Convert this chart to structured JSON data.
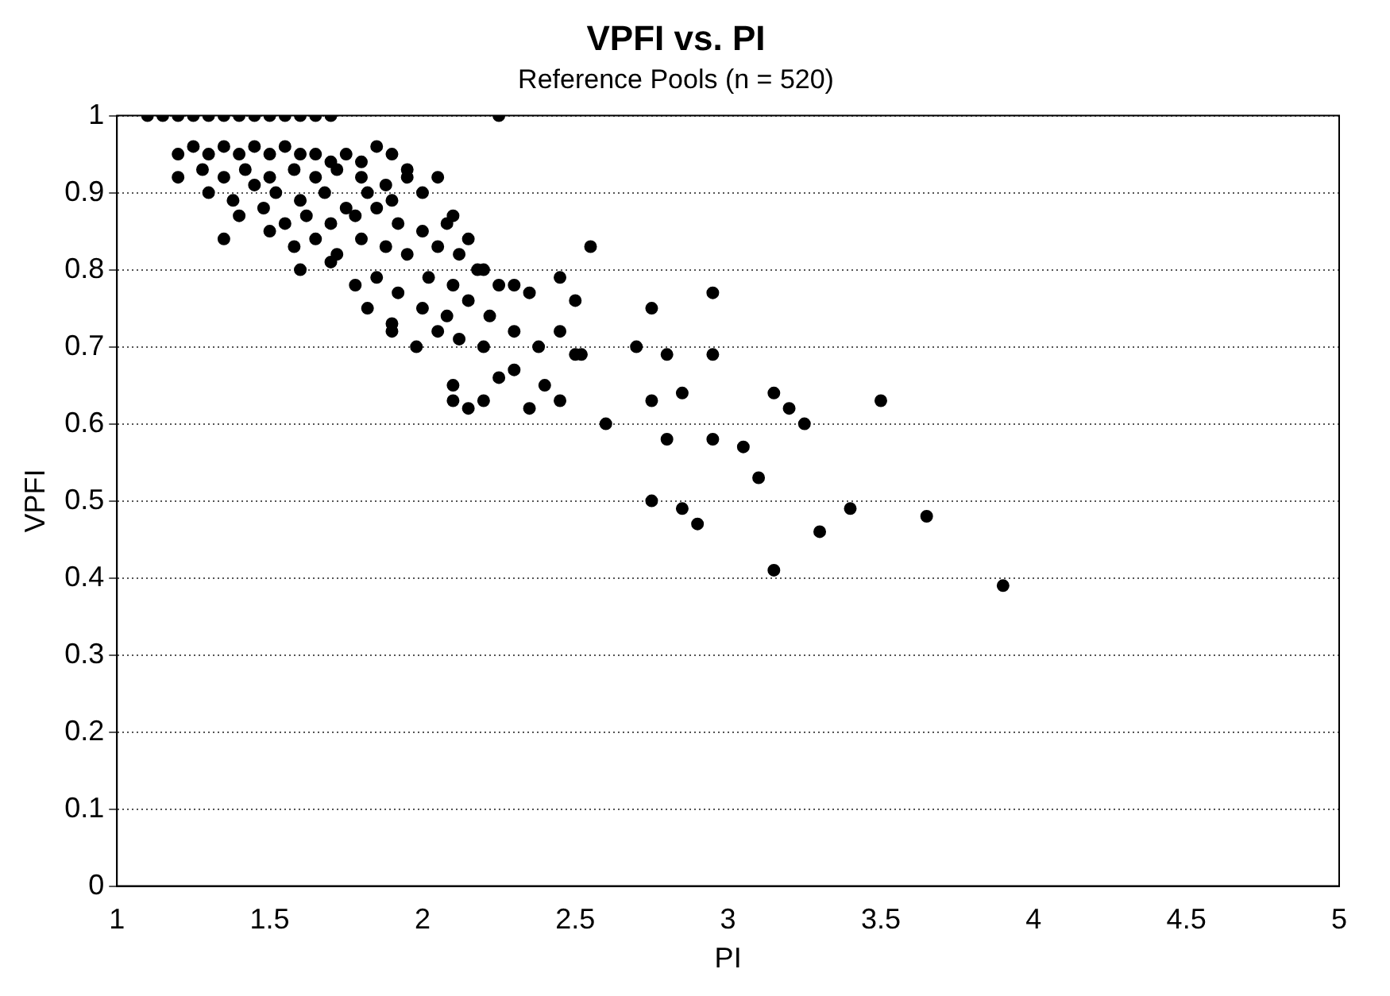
{
  "chart_data": {
    "type": "scatter",
    "title": "VPFI vs. PI",
    "subtitle": "Reference Pools (n = 520)",
    "xlabel": "PI",
    "ylabel": "VPFI",
    "xlim": [
      1,
      5
    ],
    "xticks": [
      1,
      1.5,
      2,
      2.5,
      3,
      3.5,
      4,
      4.5,
      5
    ],
    "ylim": [
      0,
      1
    ],
    "yticks": [
      0,
      0.1,
      0.2,
      0.3,
      0.4,
      0.5,
      0.6,
      0.7,
      0.8,
      0.9,
      1
    ],
    "grid": "y",
    "legend": false,
    "marker": "circle",
    "series": [
      {
        "color": "#000000",
        "x": [
          1.1,
          1.15,
          1.2,
          1.25,
          1.3,
          1.35,
          1.4,
          1.45,
          1.5,
          1.55,
          1.6,
          1.65,
          1.7,
          2.25,
          1.2,
          1.25,
          1.3,
          1.35,
          1.4,
          1.45,
          1.5,
          1.55,
          1.6,
          1.65,
          1.7,
          1.75,
          1.8,
          1.85,
          1.9,
          1.95,
          1.2,
          1.28,
          1.35,
          1.42,
          1.5,
          1.58,
          1.65,
          1.72,
          1.8,
          1.88,
          1.95,
          2.05,
          1.3,
          1.38,
          1.45,
          1.52,
          1.6,
          1.68,
          1.75,
          1.82,
          1.9,
          2.0,
          2.1,
          1.4,
          1.48,
          1.55,
          1.62,
          1.7,
          1.78,
          1.85,
          1.92,
          2.0,
          2.08,
          2.15,
          1.35,
          1.5,
          1.58,
          1.65,
          1.72,
          1.8,
          1.88,
          1.95,
          2.05,
          2.12,
          2.2,
          1.6,
          1.7,
          1.78,
          1.85,
          1.92,
          2.02,
          2.1,
          2.18,
          2.25,
          2.35,
          1.82,
          1.9,
          2.0,
          2.08,
          2.15,
          2.22,
          2.3,
          2.45,
          2.5,
          2.55,
          1.9,
          1.98,
          2.05,
          2.12,
          2.2,
          2.3,
          2.38,
          2.45,
          2.52,
          2.1,
          2.2,
          2.3,
          2.1,
          2.15,
          2.25,
          2.35,
          2.45,
          2.4,
          2.5,
          2.6,
          2.7,
          2.75,
          2.8,
          2.85,
          2.75,
          2.8,
          2.95,
          2.95,
          2.95,
          2.9,
          2.85,
          2.75,
          3.05,
          3.1,
          3.15,
          3.2,
          3.25,
          3.15,
          3.3,
          3.4,
          3.5,
          3.65,
          3.9
        ],
        "values": [
          1,
          1,
          1,
          1,
          1,
          1,
          1,
          1,
          1,
          1,
          1,
          1,
          1,
          1,
          0.95,
          0.96,
          0.95,
          0.96,
          0.95,
          0.96,
          0.95,
          0.96,
          0.95,
          0.95,
          0.94,
          0.95,
          0.94,
          0.96,
          0.95,
          0.92,
          0.92,
          0.93,
          0.92,
          0.93,
          0.92,
          0.93,
          0.92,
          0.93,
          0.92,
          0.91,
          0.93,
          0.92,
          0.9,
          0.89,
          0.91,
          0.9,
          0.89,
          0.9,
          0.88,
          0.9,
          0.89,
          0.9,
          0.87,
          0.87,
          0.88,
          0.86,
          0.87,
          0.86,
          0.87,
          0.88,
          0.86,
          0.85,
          0.86,
          0.84,
          0.84,
          0.85,
          0.83,
          0.84,
          0.82,
          0.84,
          0.83,
          0.82,
          0.83,
          0.82,
          0.8,
          0.8,
          0.81,
          0.78,
          0.79,
          0.77,
          0.79,
          0.78,
          0.8,
          0.78,
          0.77,
          0.75,
          0.73,
          0.75,
          0.74,
          0.76,
          0.74,
          0.78,
          0.79,
          0.76,
          0.83,
          0.72,
          0.7,
          0.72,
          0.71,
          0.7,
          0.72,
          0.7,
          0.72,
          0.69,
          0.65,
          0.63,
          0.67,
          0.63,
          0.62,
          0.66,
          0.62,
          0.63,
          0.65,
          0.69,
          0.6,
          0.7,
          0.75,
          0.69,
          0.64,
          0.63,
          0.58,
          0.77,
          0.69,
          0.58,
          0.47,
          0.49,
          0.5,
          0.57,
          0.53,
          0.41,
          0.62,
          0.6,
          0.64,
          0.46,
          0.49,
          0.63,
          0.48,
          0.39
        ]
      }
    ]
  }
}
